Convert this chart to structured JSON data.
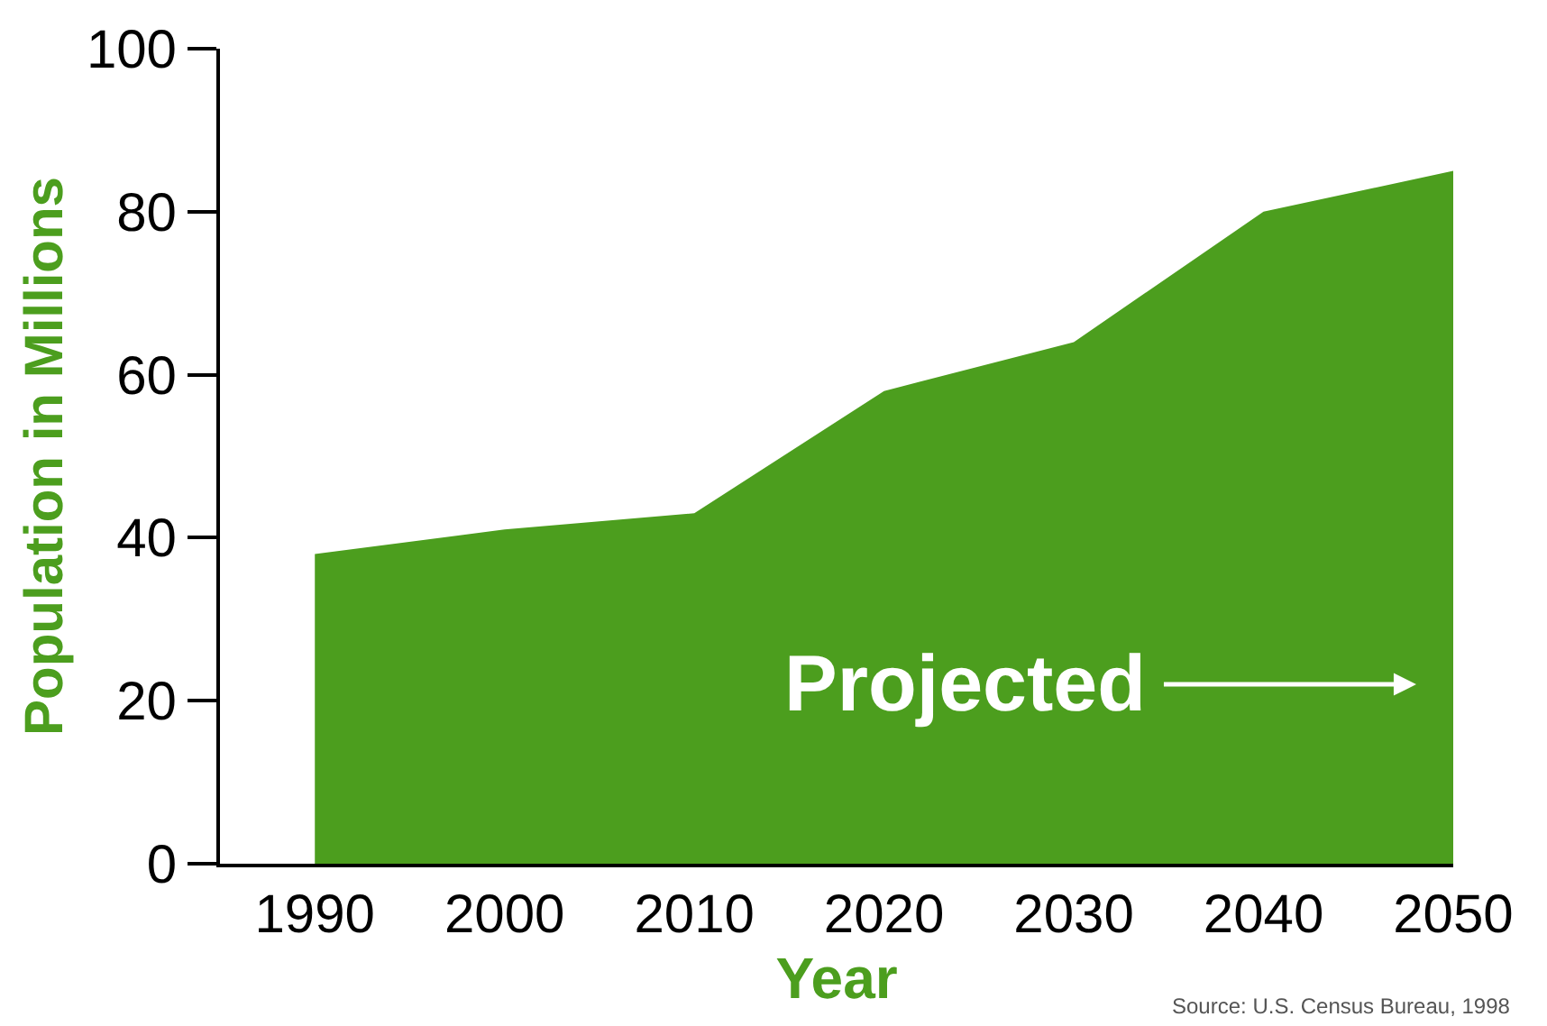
{
  "chart_data": {
    "type": "area",
    "xlabel": "Year",
    "ylabel": "Population in Millions",
    "x": [
      1990,
      2000,
      2010,
      2020,
      2030,
      2040,
      2050
    ],
    "series": [
      {
        "color": "#4c9e1e",
        "values": [
          38,
          41,
          43,
          58,
          64,
          80,
          85
        ]
      }
    ],
    "xlim": [
      1985,
      2050
    ],
    "xticks": [
      1990,
      2000,
      2010,
      2020,
      2030,
      2040,
      2050
    ],
    "ylim": [
      0,
      100
    ],
    "yticks": [
      0,
      20,
      40,
      60,
      80,
      100
    ],
    "grid": false,
    "annotations": [
      "Projected",
      "Source: U.S. Census Bureau, 1998"
    ]
  }
}
